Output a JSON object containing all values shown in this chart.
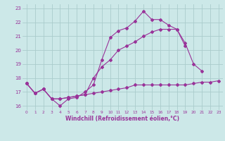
{
  "bg_color": "#cce8e8",
  "grid_color": "#aacccc",
  "line_color": "#993399",
  "xlabel": "Windchill (Refroidissement éolien,°C)",
  "xlim": [
    -0.5,
    23.5
  ],
  "ylim": [
    15.7,
    23.3
  ],
  "yticks": [
    16,
    17,
    18,
    19,
    20,
    21,
    22,
    23
  ],
  "xticks": [
    0,
    1,
    2,
    3,
    4,
    5,
    6,
    7,
    8,
    9,
    10,
    11,
    12,
    13,
    14,
    15,
    16,
    17,
    18,
    19,
    20,
    21,
    22,
    23
  ],
  "line1_x": [
    0,
    1,
    2,
    3,
    4,
    5,
    6,
    7,
    8,
    9,
    10,
    11,
    12,
    13,
    14,
    15,
    16,
    17,
    18,
    19,
    20,
    21,
    22,
    23
  ],
  "line1_y": [
    17.6,
    16.9,
    17.2,
    16.5,
    16.0,
    16.5,
    16.6,
    17.0,
    17.5,
    19.3,
    20.9,
    21.4,
    21.6,
    22.1,
    22.8,
    22.2,
    22.2,
    21.8,
    21.5,
    20.5,
    19.0,
    18.5,
    null,
    null
  ],
  "line2_x": [
    0,
    1,
    2,
    3,
    4,
    5,
    6,
    7,
    8,
    9,
    10,
    11,
    12,
    13,
    14,
    15,
    16,
    17,
    18,
    19,
    20,
    21,
    22,
    23
  ],
  "line2_y": [
    17.6,
    16.9,
    17.2,
    16.5,
    16.5,
    16.6,
    16.7,
    16.8,
    18.0,
    18.8,
    19.3,
    20.0,
    20.3,
    20.6,
    21.0,
    21.3,
    21.5,
    21.5,
    21.5,
    20.3,
    null,
    null,
    null,
    null
  ],
  "line3_x": [
    0,
    1,
    2,
    3,
    4,
    5,
    6,
    7,
    8,
    9,
    10,
    11,
    12,
    13,
    14,
    15,
    16,
    17,
    18,
    19,
    20,
    21,
    22,
    23
  ],
  "line3_y": [
    17.6,
    16.9,
    17.2,
    16.5,
    16.5,
    16.6,
    16.7,
    16.8,
    16.9,
    17.0,
    17.1,
    17.2,
    17.3,
    17.5,
    17.5,
    17.5,
    17.5,
    17.5,
    17.5,
    17.5,
    17.6,
    17.7,
    17.7,
    17.8
  ]
}
